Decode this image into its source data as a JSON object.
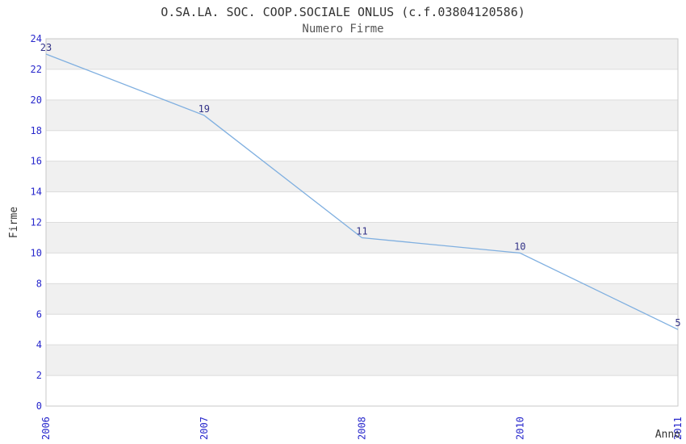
{
  "chart_data": {
    "type": "line",
    "title": "O.SA.LA. SOC. COOP.SOCIALE ONLUS (c.f.03804120586)",
    "subtitle": "Numero Firme",
    "categories": [
      "2006",
      "2007",
      "2008",
      "2010",
      "2011"
    ],
    "values": [
      23,
      19,
      11,
      10,
      5
    ],
    "point_labels": [
      "23",
      "19",
      "11",
      "10",
      "5"
    ],
    "xlabel": "Anno",
    "ylabel": "Firme",
    "ylim": [
      0,
      24
    ],
    "ytick_step": 2,
    "ytick_labels": [
      "0",
      "2",
      "4",
      "6",
      "8",
      "10",
      "12",
      "14",
      "16",
      "18",
      "20",
      "22",
      "24"
    ],
    "grid": "horizontal-bands",
    "legend": "none",
    "colors": {
      "line": "#7fafe0",
      "band": "#f0f0f0",
      "grid": "#dcdcdc",
      "plot_border": "#c9c9c9",
      "tick_label": "#2828cc",
      "value_label": "#333388",
      "axis_title": "#333333",
      "title": "#333333",
      "subtitle": "#555555",
      "background": "#ffffff"
    }
  }
}
